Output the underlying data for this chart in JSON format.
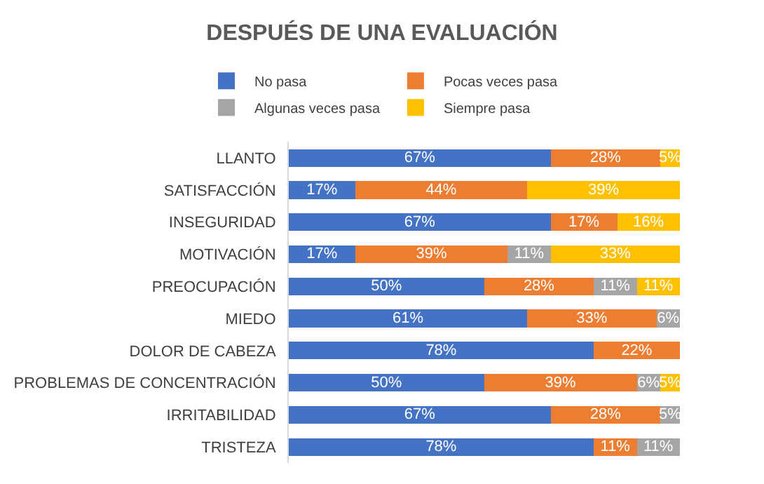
{
  "chart_data": {
    "type": "bar",
    "orientation": "horizontal",
    "stacked": true,
    "title": "DESPUÉS DE UNA EVALUACIÓN",
    "categories": [
      "LLANTO",
      "SATISFACCIÓN",
      "INSEGURIDAD",
      "MOTIVACIÓN",
      "PREOCUPACIÓN",
      "MIEDO",
      "DOLOR DE CABEZA",
      "PROBLEMAS DE CONCENTRACIÓN",
      "IRRITABILIDAD",
      "TRISTEZA"
    ],
    "series": [
      {
        "name": "No pasa",
        "color": "#4472c4",
        "values": [
          67,
          17,
          67,
          17,
          50,
          61,
          78,
          50,
          67,
          78
        ],
        "value_labels": [
          "67%",
          "17%",
          "67%",
          "17%",
          "50%",
          "61%",
          "78%",
          "50%",
          "67%",
          "78%"
        ]
      },
      {
        "name": "Pocas veces pasa",
        "color": "#ed7d31",
        "values": [
          28,
          44,
          17,
          39,
          28,
          33,
          22,
          39,
          28,
          11
        ],
        "value_labels": [
          "28%",
          "44%",
          "17%",
          "39%",
          "28%",
          "33%",
          "22%",
          "39%",
          "28%",
          "11%"
        ]
      },
      {
        "name": "Algunas veces pasa",
        "color": "#a5a5a5",
        "values": [
          null,
          null,
          null,
          11,
          11,
          6,
          null,
          6,
          5,
          11
        ],
        "value_labels": [
          null,
          null,
          null,
          "11%",
          "11%",
          "6%",
          null,
          "6%",
          "5%",
          "11%"
        ]
      },
      {
        "name": "Siempre pasa",
        "color": "#ffc000",
        "values": [
          5,
          39,
          16,
          33,
          11,
          null,
          null,
          5,
          null,
          null
        ],
        "value_labels": [
          "5%",
          "39%",
          "16%",
          "33%",
          "11%",
          null,
          null,
          "5%",
          null,
          null
        ]
      }
    ],
    "xlim": [
      0,
      100
    ],
    "tick_labels": "y",
    "legend": "top"
  }
}
